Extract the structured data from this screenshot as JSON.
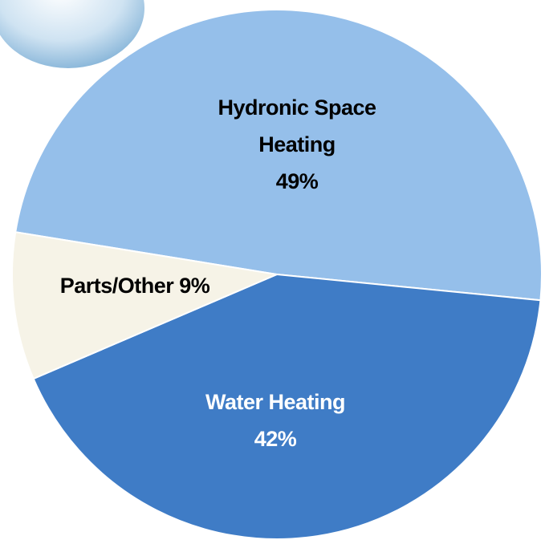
{
  "chart_data": {
    "type": "pie",
    "categories": [
      "Hydronic Space Heating",
      "Water Heating",
      "Parts/Other"
    ],
    "values": [
      49,
      42,
      9
    ],
    "value_labels": [
      "49%",
      "42%",
      "9%"
    ],
    "colors": [
      "#95bfea",
      "#3f7cc6",
      "#f6f3e7"
    ]
  }
}
